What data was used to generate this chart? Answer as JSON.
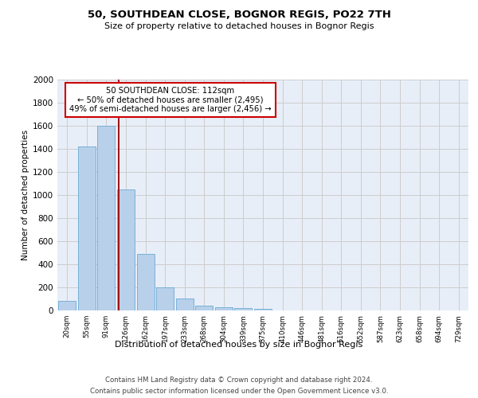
{
  "title_line1": "50, SOUTHDEAN CLOSE, BOGNOR REGIS, PO22 7TH",
  "title_line2": "Size of property relative to detached houses in Bognor Regis",
  "xlabel": "Distribution of detached houses by size in Bognor Regis",
  "ylabel": "Number of detached properties",
  "categories": [
    "20sqm",
    "55sqm",
    "91sqm",
    "126sqm",
    "162sqm",
    "197sqm",
    "233sqm",
    "268sqm",
    "304sqm",
    "339sqm",
    "375sqm",
    "410sqm",
    "446sqm",
    "481sqm",
    "516sqm",
    "552sqm",
    "587sqm",
    "623sqm",
    "658sqm",
    "694sqm",
    "729sqm"
  ],
  "values": [
    80,
    1420,
    1600,
    1050,
    490,
    200,
    105,
    40,
    28,
    20,
    17,
    0,
    0,
    0,
    0,
    0,
    0,
    0,
    0,
    0,
    0
  ],
  "bar_color": "#b8d0ea",
  "bar_edge_color": "#6aaad4",
  "grid_color": "#cccccc",
  "background_color": "#e8eef8",
  "red_line_x": 2.62,
  "annotation_text": "50 SOUTHDEAN CLOSE: 112sqm\n← 50% of detached houses are smaller (2,495)\n49% of semi-detached houses are larger (2,456) →",
  "annotation_box_color": "#ffffff",
  "annotation_box_edge": "#cc0000",
  "ylim": [
    0,
    2000
  ],
  "footnote_line1": "Contains HM Land Registry data © Crown copyright and database right 2024.",
  "footnote_line2": "Contains public sector information licensed under the Open Government Licence v3.0."
}
